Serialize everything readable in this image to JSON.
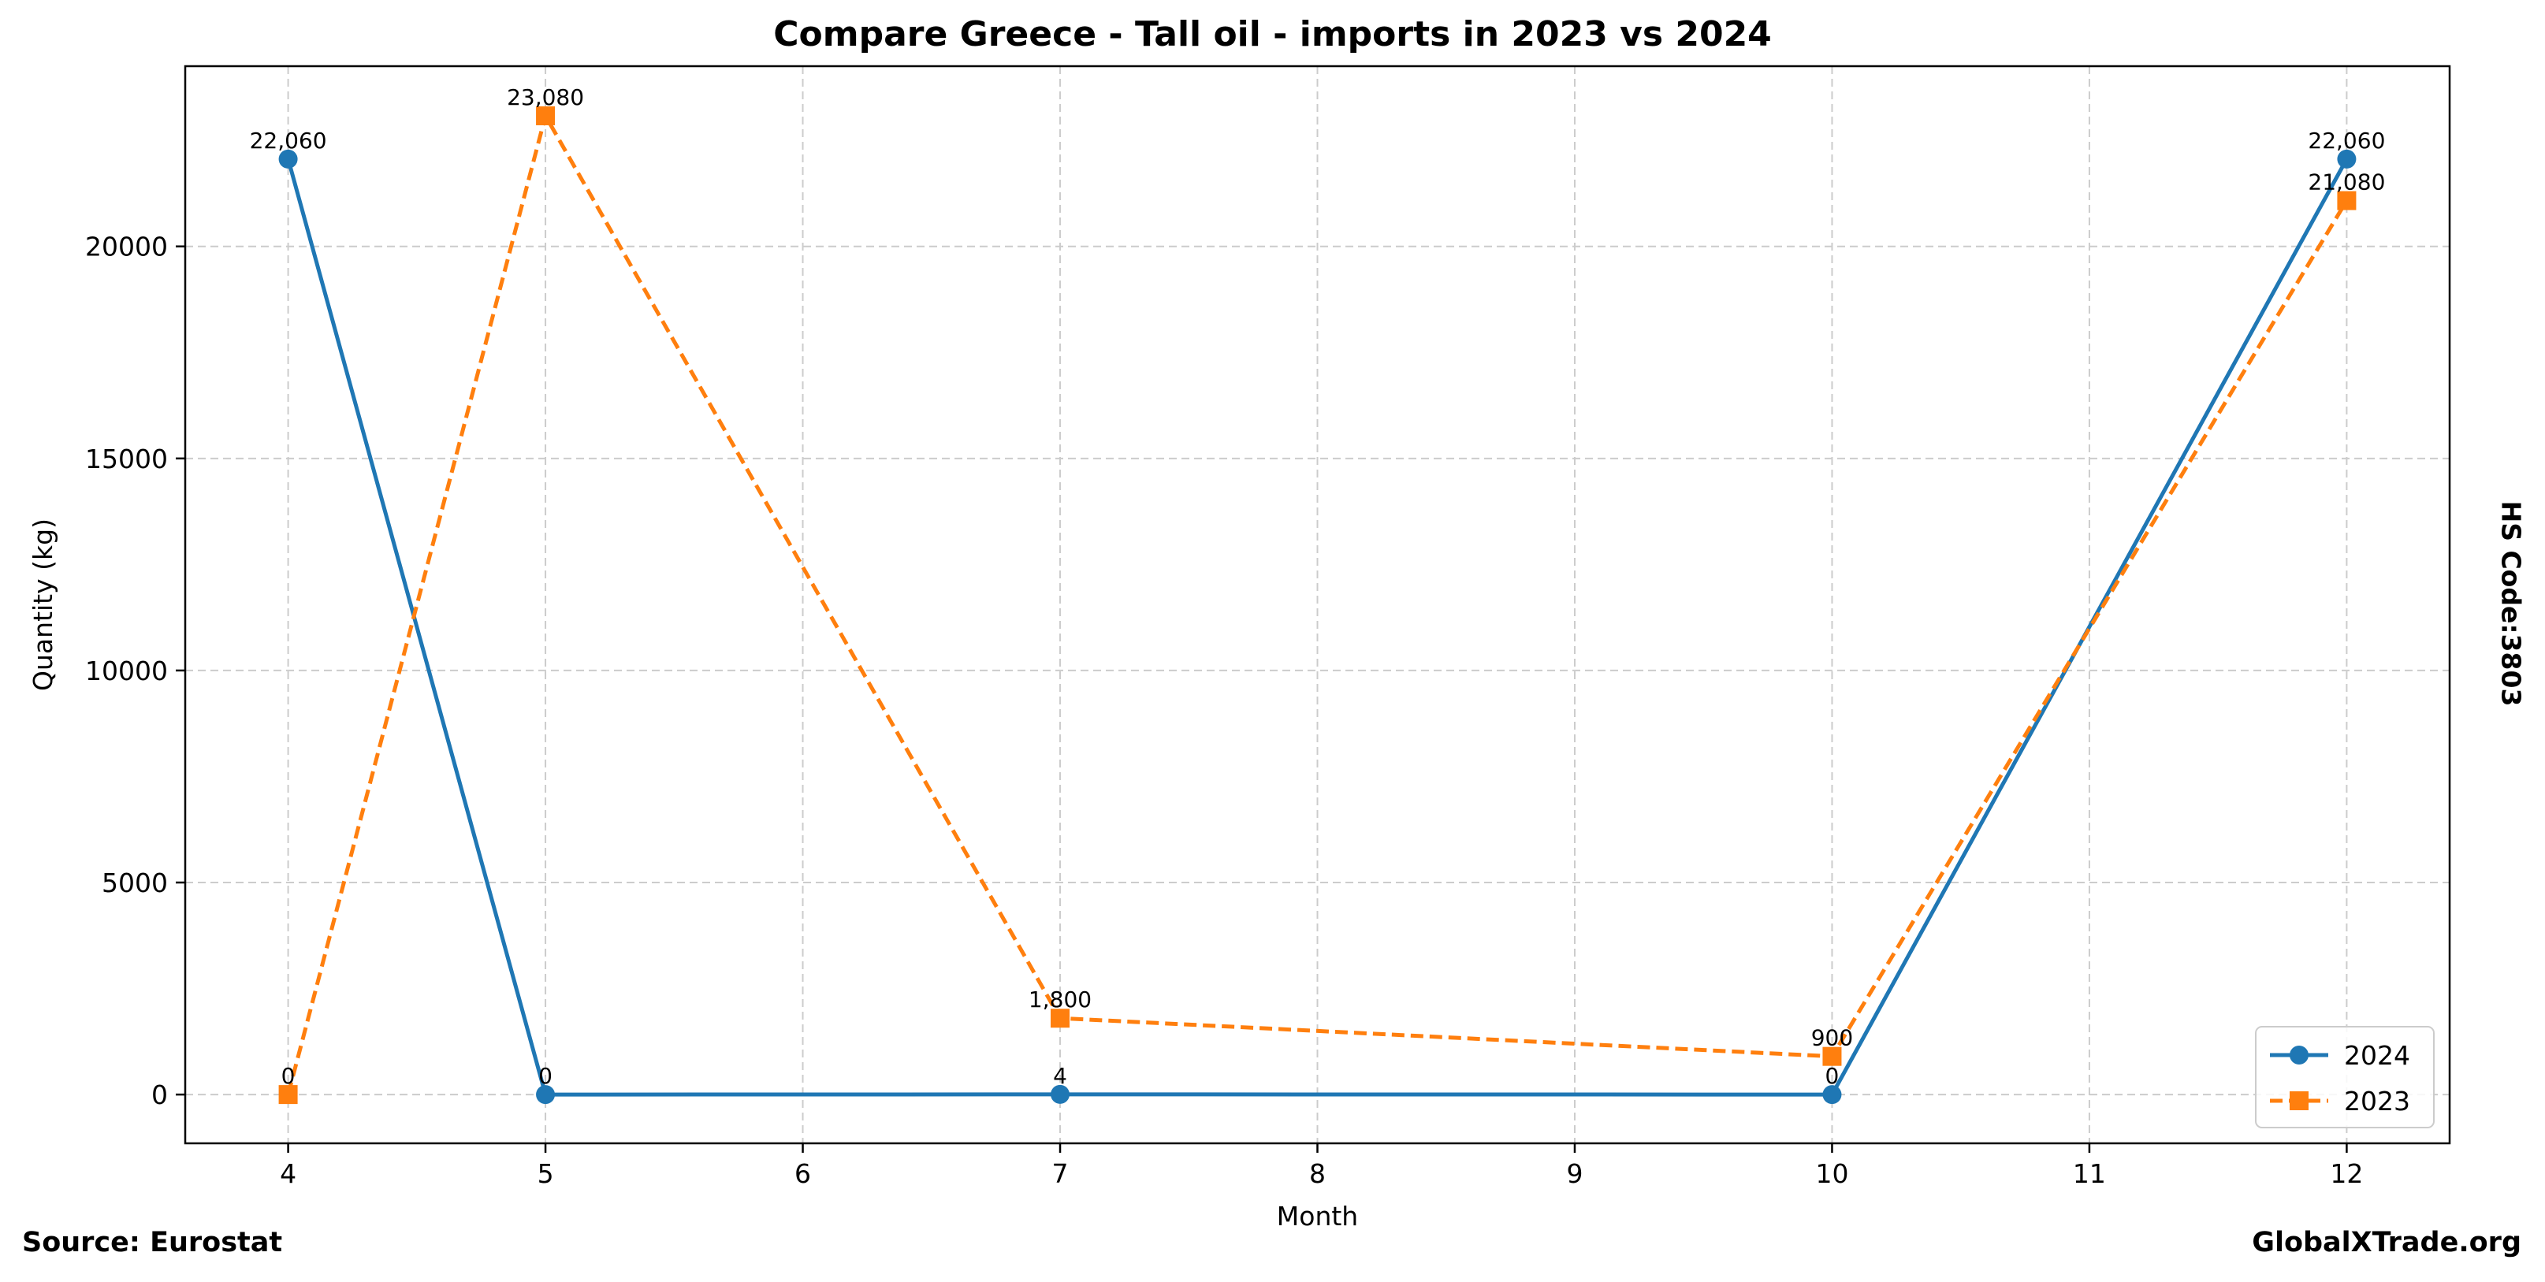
{
  "footer": {
    "source": "Source: Eurostat",
    "site": "GlobalXTrade.org",
    "hs_code": "HS Code:3803"
  },
  "chart_data": {
    "type": "line",
    "title": "Compare Greece - Tall oil - imports in 2023 vs 2024",
    "xlabel": "Month",
    "ylabel": "Quantity (kg)",
    "x_ticks": [
      4,
      5,
      6,
      7,
      8,
      9,
      10,
      11,
      12
    ],
    "y_ticks": [
      0,
      5000,
      10000,
      15000,
      20000
    ],
    "xlim": [
      3.6,
      12.4
    ],
    "ylim": [
      -1150,
      24250
    ],
    "grid": true,
    "legend_position": "bottom-right",
    "series": [
      {
        "name": "2024",
        "color": "#1f77b4",
        "marker": "circle",
        "line_style": "solid",
        "x": [
          4,
          5,
          7,
          10,
          12
        ],
        "values": [
          22060,
          0,
          4,
          0,
          22060
        ],
        "labels": [
          "22,060",
          "0",
          "4",
          "0",
          "22,060"
        ]
      },
      {
        "name": "2023",
        "color": "#ff7f0e",
        "marker": "square",
        "line_style": "dashed",
        "x": [
          4,
          5,
          7,
          10,
          12
        ],
        "values": [
          0,
          23080,
          1800,
          900,
          21080
        ],
        "labels": [
          "0",
          "23,080",
          "1,800",
          "900",
          "21,080"
        ]
      }
    ]
  }
}
